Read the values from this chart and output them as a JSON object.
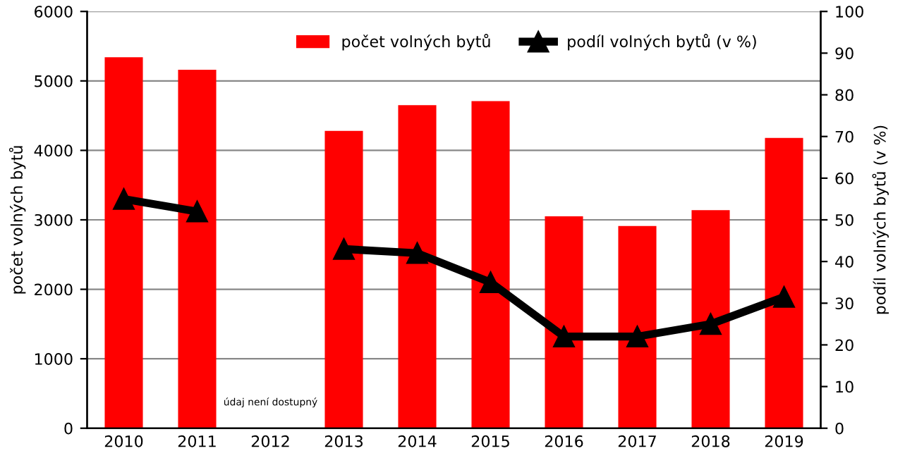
{
  "chart_data": {
    "type": "bar",
    "categories": [
      "2010",
      "2011",
      "2012",
      "2013",
      "2014",
      "2015",
      "2016",
      "2017",
      "2018",
      "2019"
    ],
    "series": [
      {
        "name": "počet volných bytů",
        "color": "#ff0000",
        "values": [
          5340,
          5160,
          null,
          4280,
          4650,
          4710,
          3050,
          2910,
          3140,
          4180
        ]
      },
      {
        "name": "podíl volných bytů (v %)",
        "type": "line",
        "axis": "y2",
        "color": "#000000",
        "marker": "triangle",
        "values": [
          55,
          52,
          null,
          43,
          42,
          35,
          22,
          22,
          25,
          31.5
        ]
      }
    ],
    "ylabel": "počet volných bytů",
    "y2label": "podíl volných bytů (v %)",
    "ylim": [
      0,
      6000
    ],
    "yticks": [
      0,
      1000,
      2000,
      3000,
      4000,
      5000,
      6000
    ],
    "y2lim": [
      0,
      100
    ],
    "y2ticks": [
      0,
      10,
      20,
      30,
      40,
      50,
      60,
      70,
      80,
      90,
      100
    ],
    "grid": "y",
    "legend": "top",
    "annotations": [
      "údaj není dostupný"
    ]
  }
}
